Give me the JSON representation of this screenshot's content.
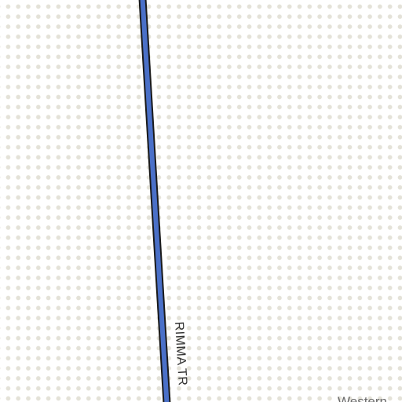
{
  "map": {
    "road": {
      "name": "RIMMA TR",
      "casing_color": "#1a1a1a",
      "fill_color": "#4a70c8"
    },
    "place_label": "Western",
    "background_color": "#ffffff",
    "dot_color": "#e4e2d8"
  }
}
